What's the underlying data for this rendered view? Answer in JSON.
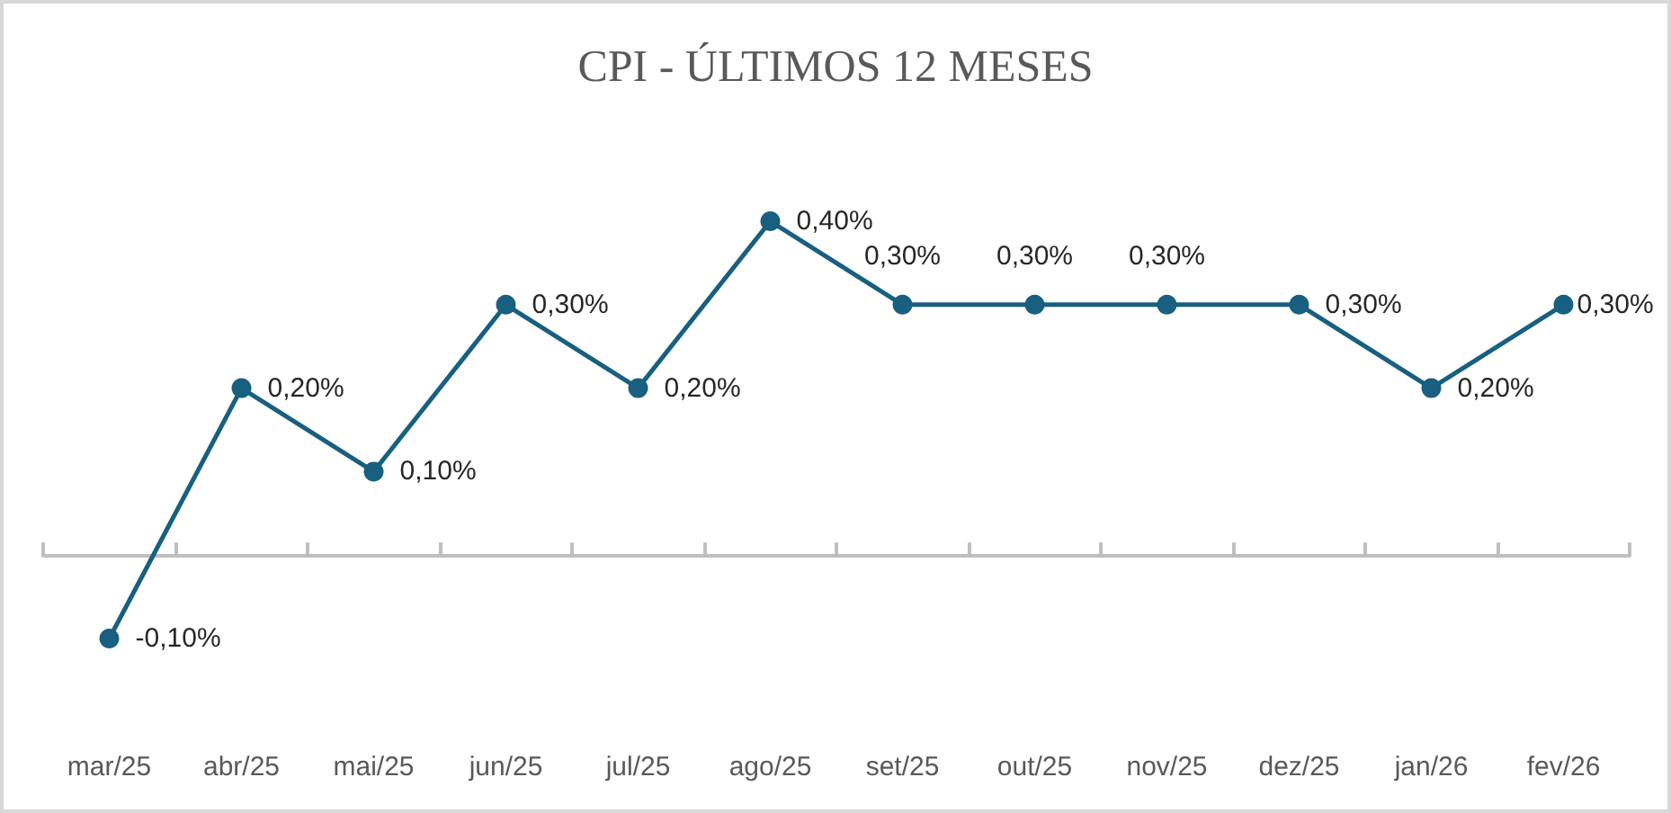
{
  "chart_data": {
    "type": "line",
    "title": "CPI - ÚLTIMOS 12 MESES",
    "categories": [
      "mar/25",
      "abr/25",
      "mai/25",
      "jun/25",
      "jul/25",
      "ago/25",
      "set/25",
      "out/25",
      "nov/25",
      "dez/25",
      "jan/26",
      "fev/26"
    ],
    "values": [
      -0.1,
      0.2,
      0.1,
      0.3,
      0.2,
      0.4,
      0.3,
      0.3,
      0.3,
      0.3,
      0.2,
      0.3
    ],
    "value_labels": [
      "-0,10%",
      "0,20%",
      "0,10%",
      "0,30%",
      "0,20%",
      "0,40%",
      "0,30%",
      "0,30%",
      "0,30%",
      "0,30%",
      "0,20%",
      "0,30%"
    ],
    "color": "#185f80",
    "marker": "circle",
    "line_style": "solid"
  }
}
